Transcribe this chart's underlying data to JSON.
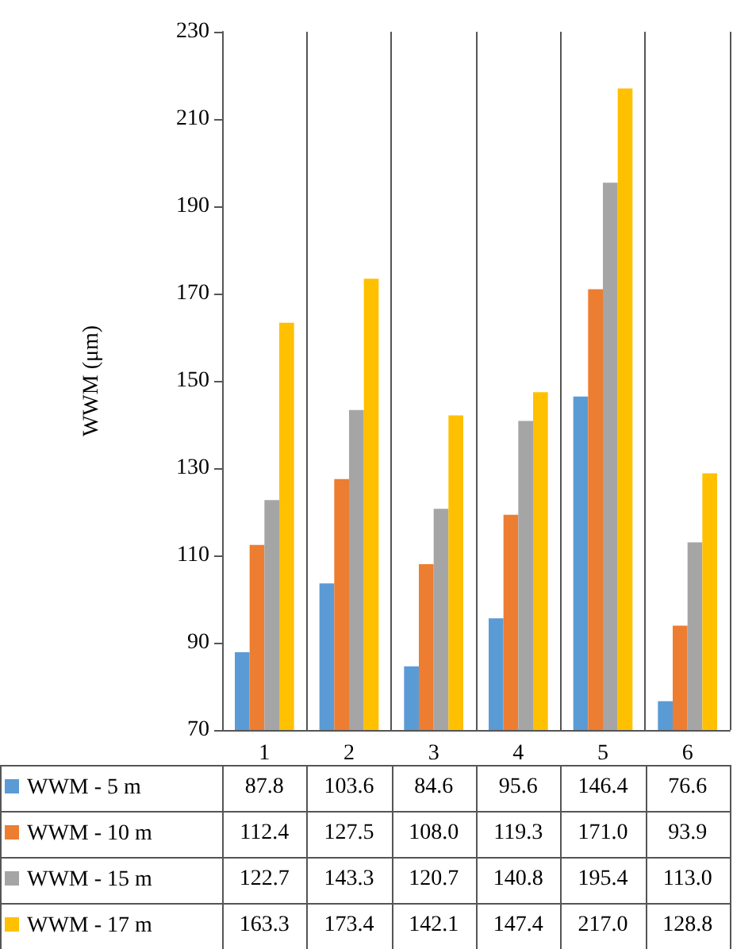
{
  "chart_data": {
    "type": "bar",
    "ylabel": "WWM (μm)",
    "categories": [
      "1",
      "2",
      "3",
      "4",
      "5",
      "6"
    ],
    "series": [
      {
        "name": "WWM - 5 m",
        "color": "#5b9bd5",
        "values": [
          87.8,
          103.6,
          84.6,
          95.6,
          146.4,
          76.6
        ],
        "value_labels": [
          "87.8",
          "103.6",
          "84.6",
          "95.6",
          "146.4",
          "76.6"
        ]
      },
      {
        "name": "WWM - 10 m",
        "color": "#ed7d31",
        "values": [
          112.4,
          127.5,
          108.0,
          119.3,
          171.0,
          93.9
        ],
        "value_labels": [
          "112.4",
          "127.5",
          "108.0",
          "119.3",
          "171.0",
          "93.9"
        ]
      },
      {
        "name": "WWM - 15 m",
        "color": "#a5a5a5",
        "values": [
          122.7,
          143.3,
          120.7,
          140.8,
          195.4,
          113.0
        ],
        "value_labels": [
          "122.7",
          "143.3",
          "120.7",
          "140.8",
          "195.4",
          "113.0"
        ]
      },
      {
        "name": "WWM - 17 m",
        "color": "#ffc000",
        "values": [
          163.3,
          173.4,
          142.1,
          147.4,
          217.0,
          128.8
        ],
        "value_labels": [
          "163.3",
          "173.4",
          "142.1",
          "147.4",
          "217.0",
          "128.8"
        ]
      }
    ],
    "ylim": [
      70,
      230
    ],
    "yticks": [
      70,
      90,
      110,
      130,
      150,
      170,
      190,
      210,
      230
    ],
    "grid": "x",
    "legend": "bottom"
  }
}
